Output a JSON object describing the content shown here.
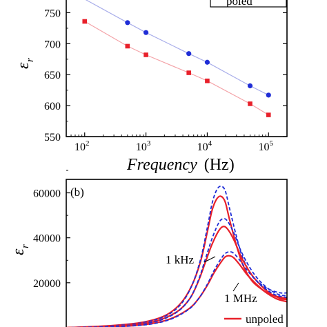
{
  "colors": {
    "red": "#e8202a",
    "blue": "#1f2dd6",
    "axis": "#000000",
    "redLine": "#f4a3a8",
    "blueLine": "#a9aeea"
  },
  "chart_data": [
    {
      "type": "scatter",
      "panel": "a",
      "xlabel_italic": "Frequency",
      "xlabel_unit": "(Hz)",
      "ylabel_symbol": "ε",
      "ylabel_sub": "r",
      "xscale": "log",
      "xlim": [
        50,
        200000
      ],
      "ylim": [
        550,
        775
      ],
      "xticks": [
        {
          "base": "10",
          "exp": "2",
          "value": 100
        },
        {
          "base": "10",
          "exp": "3",
          "value": 1000
        },
        {
          "base": "10",
          "exp": "4",
          "value": 10000
        },
        {
          "base": "10",
          "exp": "5",
          "value": 100000
        }
      ],
      "yticks": [
        {
          "label": "550",
          "value": 550
        },
        {
          "label": "600",
          "value": 600
        },
        {
          "label": "650",
          "value": 650
        },
        {
          "label": "700",
          "value": 700
        },
        {
          "label": "750",
          "value": 750
        }
      ],
      "legend_visible_text": "poled",
      "series": [
        {
          "color": "red",
          "marker": "square",
          "points": [
            [
              100,
              736
            ],
            [
              500,
              696
            ],
            [
              1000,
              682
            ],
            [
              5000,
              653
            ],
            [
              10000,
              640
            ],
            [
              50000,
              603
            ],
            [
              100000,
              585
            ]
          ]
        },
        {
          "color": "blue",
          "marker": "circle",
          "points": [
            [
              500,
              734
            ],
            [
              1000,
              718
            ],
            [
              5000,
              684
            ],
            [
              10000,
              670
            ],
            [
              50000,
              632
            ],
            [
              100000,
              617
            ]
          ]
        }
      ]
    },
    {
      "type": "line",
      "panel": "b",
      "panel_label": "(b)",
      "ylabel_symbol": "ε",
      "ylabel_sub": "r",
      "ylim": [
        0,
        66000
      ],
      "xlim": [
        0,
        1
      ],
      "yticks": [
        {
          "label": "20000",
          "value": 20000
        },
        {
          "label": "40000",
          "value": 40000
        },
        {
          "label": "60000",
          "value": 60000
        }
      ],
      "annotations": {
        "low": "1 kHz",
        "high": "1 MHz"
      },
      "legend": {
        "unpoled": "unpoled"
      },
      "curves": [
        {
          "style": "solid",
          "color": "red",
          "points": [
            [
              0.0,
              0
            ],
            [
              0.2,
              900
            ],
            [
              0.35,
              2500
            ],
            [
              0.45,
              5500
            ],
            [
              0.52,
              11000
            ],
            [
              0.57,
              19000
            ],
            [
              0.61,
              30000
            ],
            [
              0.64,
              43000
            ],
            [
              0.66,
              52000
            ],
            [
              0.68,
              57000
            ],
            [
              0.7,
              58500
            ],
            [
              0.72,
              56000
            ],
            [
              0.74,
              48000
            ],
            [
              0.77,
              37000
            ],
            [
              0.8,
              28000
            ],
            [
              0.84,
              21000
            ],
            [
              0.88,
              17500
            ],
            [
              0.92,
              15000
            ],
            [
              0.97,
              13500
            ],
            [
              1.0,
              13000
            ]
          ]
        },
        {
          "style": "dashed",
          "color": "blue",
          "points": [
            [
              0.0,
              0
            ],
            [
              0.2,
              800
            ],
            [
              0.35,
              2300
            ],
            [
              0.45,
              5200
            ],
            [
              0.52,
              10500
            ],
            [
              0.57,
              19000
            ],
            [
              0.61,
              31000
            ],
            [
              0.64,
              45000
            ],
            [
              0.66,
              55000
            ],
            [
              0.68,
              61000
            ],
            [
              0.7,
              63000
            ],
            [
              0.72,
              61000
            ],
            [
              0.74,
              53000
            ],
            [
              0.77,
              41000
            ],
            [
              0.8,
              31000
            ],
            [
              0.84,
              23500
            ],
            [
              0.88,
              19500
            ],
            [
              0.92,
              17000
            ],
            [
              0.97,
              15500
            ],
            [
              1.0,
              15500
            ]
          ]
        },
        {
          "style": "solid",
          "color": "red",
          "points": [
            [
              0.0,
              0
            ],
            [
              0.25,
              900
            ],
            [
              0.4,
              2800
            ],
            [
              0.5,
              7000
            ],
            [
              0.56,
              13000
            ],
            [
              0.6,
              21000
            ],
            [
              0.63,
              29000
            ],
            [
              0.66,
              37000
            ],
            [
              0.69,
              43000
            ],
            [
              0.71,
              45000
            ],
            [
              0.73,
              44000
            ],
            [
              0.76,
              39000
            ],
            [
              0.79,
              32000
            ],
            [
              0.83,
              25000
            ],
            [
              0.87,
              20000
            ],
            [
              0.92,
              15500
            ],
            [
              0.97,
              13000
            ],
            [
              1.0,
              12500
            ]
          ]
        },
        {
          "style": "dashed",
          "color": "blue",
          "points": [
            [
              0.0,
              0
            ],
            [
              0.25,
              800
            ],
            [
              0.4,
              2600
            ],
            [
              0.5,
              6800
            ],
            [
              0.56,
              13000
            ],
            [
              0.6,
              21500
            ],
            [
              0.63,
              30500
            ],
            [
              0.66,
              39500
            ],
            [
              0.69,
              46500
            ],
            [
              0.71,
              48500
            ],
            [
              0.73,
              47500
            ],
            [
              0.76,
              42000
            ],
            [
              0.79,
              34500
            ],
            [
              0.83,
              27000
            ],
            [
              0.87,
              21500
            ],
            [
              0.92,
              17000
            ],
            [
              0.97,
              14500
            ],
            [
              1.0,
              14500
            ]
          ]
        },
        {
          "style": "solid",
          "color": "red",
          "points": [
            [
              0.0,
              0
            ],
            [
              0.3,
              900
            ],
            [
              0.45,
              3200
            ],
            [
              0.55,
              8000
            ],
            [
              0.6,
              13000
            ],
            [
              0.64,
              19000
            ],
            [
              0.67,
              24500
            ],
            [
              0.7,
              29000
            ],
            [
              0.72,
              31500
            ],
            [
              0.74,
              32000
            ],
            [
              0.76,
              31000
            ],
            [
              0.79,
              27500
            ],
            [
              0.82,
              23500
            ],
            [
              0.86,
              19500
            ],
            [
              0.9,
              16000
            ],
            [
              0.95,
              13000
            ],
            [
              1.0,
              11500
            ]
          ]
        },
        {
          "style": "dashed",
          "color": "blue",
          "points": [
            [
              0.0,
              0
            ],
            [
              0.3,
              800
            ],
            [
              0.45,
              3000
            ],
            [
              0.55,
              7800
            ],
            [
              0.6,
              13000
            ],
            [
              0.64,
              19500
            ],
            [
              0.67,
              25500
            ],
            [
              0.7,
              30500
            ],
            [
              0.72,
              33000
            ],
            [
              0.74,
              33800
            ],
            [
              0.76,
              33000
            ],
            [
              0.79,
              29500
            ],
            [
              0.82,
              25500
            ],
            [
              0.86,
              21000
            ],
            [
              0.9,
              17500
            ],
            [
              0.95,
              14500
            ],
            [
              1.0,
              13500
            ]
          ]
        }
      ]
    }
  ]
}
